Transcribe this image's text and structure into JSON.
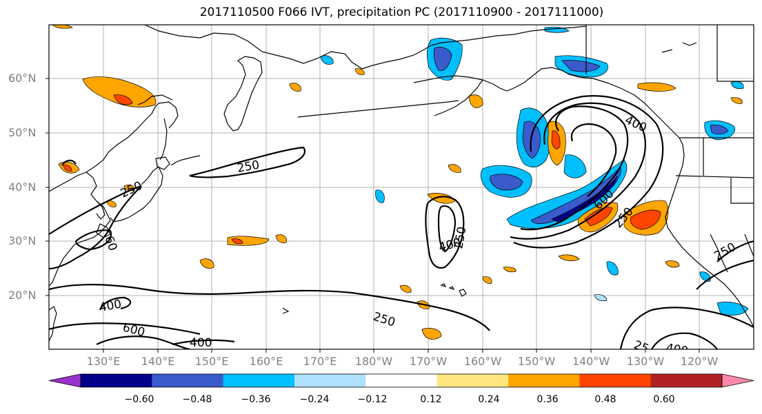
{
  "title": "2017110500 F066 IVT, precipitation PC (2017110900 - 2017111000)",
  "lat_labels": [
    "60°N",
    "50°N",
    "40°N",
    "30°N",
    "20°N"
  ],
  "lon_labels": [
    "130°E",
    "140°E",
    "150°E",
    "160°E",
    "170°E",
    "180°W",
    "170°W",
    "160°W",
    "150°W",
    "140°W",
    "130°W",
    "120°W"
  ],
  "contour_labels": {
    "c1": "250",
    "c2": "250",
    "c3": "60",
    "c4": "400",
    "c5": "250",
    "c6": "400",
    "c7": "600",
    "c8": "400",
    "c9": "250",
    "c10": "400",
    "c11": "600",
    "c12": "250",
    "c13": "250",
    "c14": "25",
    "c15": "400"
  },
  "colorbar": {
    "colors": [
      "#9932cc",
      "#00008b",
      "#3a5bcc",
      "#00bfff",
      "#b0e0ff",
      "#ffffff",
      "#ffe680",
      "#ffa500",
      "#ff4500",
      "#b22222",
      "#ff88aa"
    ],
    "ticks": [
      "−0.60",
      "−0.48",
      "−0.36",
      "−0.24",
      "−0.12",
      "0.12",
      "0.24",
      "0.36",
      "0.48",
      "0.60"
    ]
  }
}
